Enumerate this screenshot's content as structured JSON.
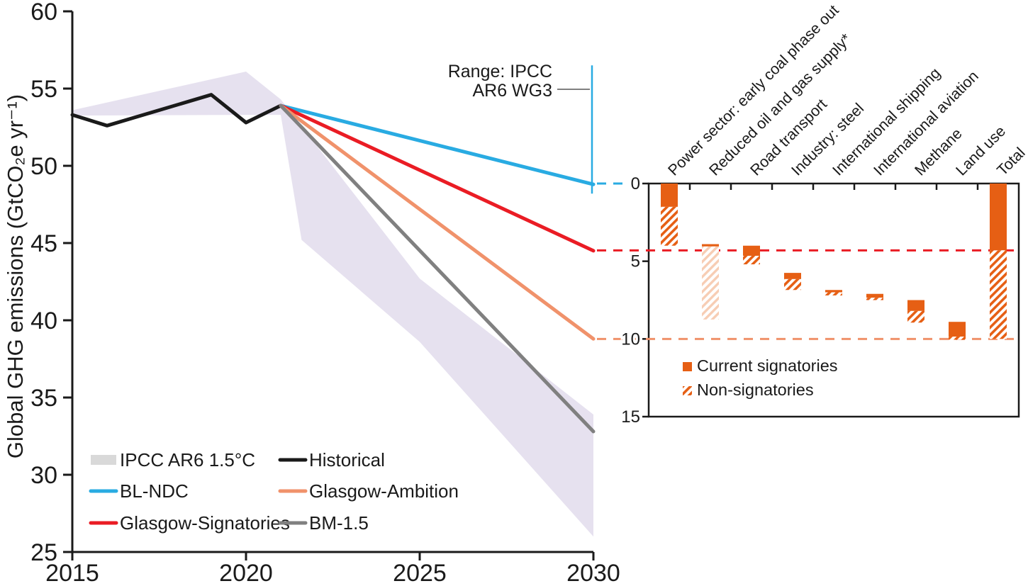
{
  "figure": {
    "background": "#FFFFFF",
    "text_color": "#1A1A1A"
  },
  "chart_data": [
    {
      "id": "main",
      "type": "line",
      "title": "",
      "xlabel": "",
      "ylabel": "Global GHG emissions (GtCO₂e yr⁻¹)",
      "xlim": [
        2015,
        2030
      ],
      "ylim": [
        25,
        60
      ],
      "xticks": [
        2015,
        2020,
        2025,
        2030
      ],
      "yticks": [
        60,
        55,
        50,
        45,
        40,
        35,
        30,
        25
      ],
      "grid": false,
      "band": {
        "label": "IPCC AR6 1.5°C",
        "color": "#E6E1EF",
        "top": [
          [
            2015,
            53.6
          ],
          [
            2020,
            56.1
          ],
          [
            2021,
            54.3
          ],
          [
            2025,
            42.7
          ],
          [
            2030,
            33.9
          ]
        ],
        "bottom": [
          [
            2015,
            53.25
          ],
          [
            2020,
            53.3
          ],
          [
            2021,
            53.3
          ],
          [
            2021.6,
            45.2
          ],
          [
            2025,
            38.6
          ],
          [
            2030,
            26.0
          ]
        ]
      },
      "series": [
        {
          "name": "Historical",
          "color": "#1A1A1A",
          "x": [
            2015,
            2016,
            2019,
            2020,
            2021
          ],
          "y": [
            53.3,
            52.6,
            54.6,
            52.8,
            53.9
          ]
        },
        {
          "name": "BL-NDC",
          "color": "#29ABE2",
          "x": [
            2021,
            2030
          ],
          "y": [
            53.9,
            48.8
          ]
        },
        {
          "name": "Glasgow-Signatories",
          "color": "#EA1C24",
          "x": [
            2021,
            2030
          ],
          "y": [
            53.9,
            44.5
          ]
        },
        {
          "name": "Glasgow-Ambition",
          "color": "#F0926B",
          "x": [
            2021,
            2030
          ],
          "y": [
            53.9,
            38.8
          ]
        },
        {
          "name": "BM-1.5",
          "color": "#808080",
          "x": [
            2021,
            2030
          ],
          "y": [
            53.9,
            32.8
          ]
        }
      ],
      "range_bar": {
        "label_lines": [
          "Range: IPCC",
          "AR6 WG3"
        ],
        "x": 2030,
        "top": 56.5,
        "bottom": 48.2,
        "color": "#29ABE2",
        "pointer_color": "#808080"
      },
      "connectors": [
        {
          "inset_value": 0,
          "color": "#29ABE2",
          "extent": "short"
        },
        {
          "inset_value": 4.3,
          "color": "#EA1C24",
          "extent": "full"
        },
        {
          "inset_value": 10,
          "color": "#F0926B",
          "extent": "full"
        }
      ],
      "legend": [
        {
          "label": "IPCC AR6 1.5°C",
          "swatch": "band",
          "color": "#D9D9D9",
          "col": 0,
          "row": 0
        },
        {
          "label": "Historical",
          "swatch": "line",
          "color": "#1A1A1A",
          "col": 1,
          "row": 0
        },
        {
          "label": "BL-NDC",
          "swatch": "line",
          "color": "#29ABE2",
          "col": 0,
          "row": 1
        },
        {
          "label": "Glasgow-Ambition",
          "swatch": "line",
          "color": "#F0926B",
          "col": 1,
          "row": 1
        },
        {
          "label": "Glasgow-Signatories",
          "swatch": "line",
          "color": "#EA1C24",
          "col": 0,
          "row": 2
        },
        {
          "label": "BM-1.5",
          "swatch": "line",
          "color": "#808080",
          "col": 1,
          "row": 2
        }
      ]
    },
    {
      "id": "inset",
      "type": "bar",
      "subtype": "waterfall-reductions",
      "ylim": [
        0,
        15
      ],
      "yticks": [
        0,
        5,
        10,
        15
      ],
      "bar_color": "#E65F14",
      "light_hatch_color": "#F7CDB4",
      "categories": [
        "Power sector: early coal phase out",
        "Reduced oil and gas supply*",
        "Road transport",
        "Industry: steel",
        "International shipping",
        "International aviation",
        "Methane",
        "Land use",
        "Total"
      ],
      "bars": [
        {
          "category": "Power sector: early coal phase out",
          "solid": [
            0,
            1.5
          ],
          "hatch": [
            1.5,
            4.0
          ],
          "light": false
        },
        {
          "category": "Reduced oil and gas supply*",
          "solid": [
            3.9,
            4.05
          ],
          "hatch": [
            4.05,
            8.75
          ],
          "light": true
        },
        {
          "category": "Road transport",
          "solid": [
            4.0,
            4.65
          ],
          "hatch": [
            4.65,
            5.2
          ],
          "light": false
        },
        {
          "category": "Industry: steel",
          "solid": [
            5.75,
            6.15
          ],
          "hatch": [
            6.15,
            6.85
          ],
          "light": false
        },
        {
          "category": "International shipping",
          "solid": [
            6.85,
            7.0
          ],
          "hatch": [
            7.0,
            7.2
          ],
          "light": false
        },
        {
          "category": "International aviation",
          "solid": [
            7.1,
            7.35
          ],
          "hatch": [
            7.35,
            7.5
          ],
          "light": false
        },
        {
          "category": "Methane",
          "solid": [
            7.5,
            8.2
          ],
          "hatch": [
            8.2,
            8.95
          ],
          "light": false
        },
        {
          "category": "Land use",
          "solid": [
            8.9,
            9.85
          ],
          "hatch": [
            9.85,
            10.05
          ],
          "light": false
        },
        {
          "category": "Total",
          "solid": [
            0,
            4.3
          ],
          "hatch": [
            4.3,
            10.0
          ],
          "light": false
        }
      ],
      "legend": [
        {
          "label": "Current signatories",
          "style": "solid"
        },
        {
          "label": "Non-signatories",
          "style": "hatch"
        }
      ]
    }
  ]
}
